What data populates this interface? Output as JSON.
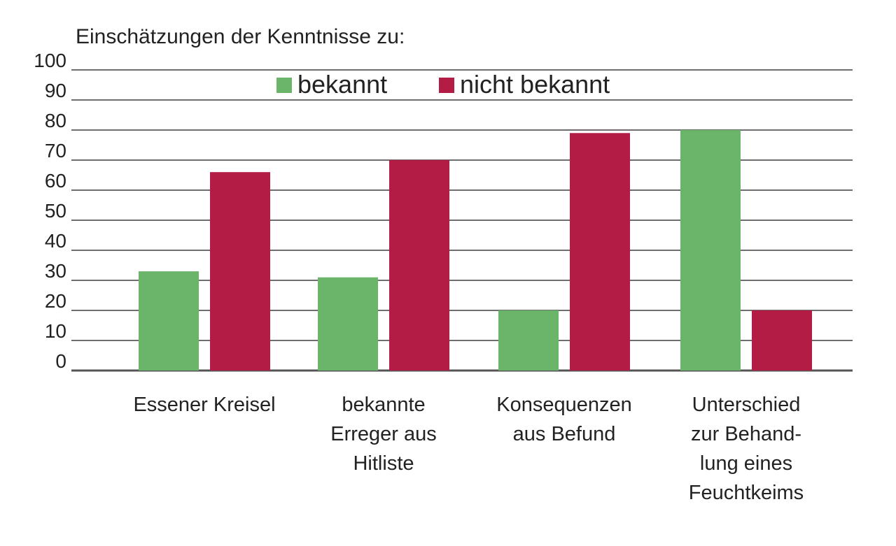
{
  "chart_data": {
    "type": "bar",
    "title": "Einschätzungen der Kenntnisse zu:",
    "xlabel": "",
    "ylabel": "",
    "ylim": [
      0,
      100
    ],
    "yticks": [
      0,
      10,
      20,
      30,
      40,
      50,
      60,
      70,
      80,
      90,
      100
    ],
    "grid": true,
    "legend_position": "top-center",
    "categories": [
      [
        "Essener Kreisel"
      ],
      [
        "bekannte",
        "Erreger aus",
        "Hitliste"
      ],
      [
        "Konsequenzen",
        "aus Befund"
      ],
      [
        "Unterschied",
        "zur Behand-",
        "lung eines",
        "Feuchtkeims"
      ]
    ],
    "series": [
      {
        "name": "bekannt",
        "color": "#6ab56a",
        "values": [
          33,
          31,
          20,
          80
        ]
      },
      {
        "name": "nicht bekannt",
        "color": "#b31c44",
        "values": [
          66,
          70,
          79,
          20
        ]
      }
    ]
  }
}
